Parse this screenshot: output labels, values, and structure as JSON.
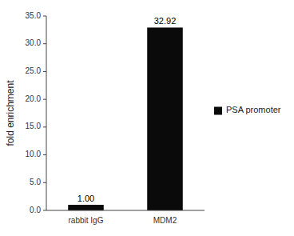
{
  "chart_data": {
    "type": "bar",
    "categories": [
      "rabbit IgG",
      "MDM2"
    ],
    "series": [
      {
        "name": "PSA promoter",
        "color": "#0a0a0a",
        "values": [
          1.0,
          32.92
        ],
        "value_labels": [
          "1.00",
          "32.92"
        ]
      }
    ],
    "ylabel": "fold enrichment",
    "ylim": [
      0,
      35
    ],
    "yticks": [
      {
        "value": 0,
        "label": "0.0"
      },
      {
        "value": 5,
        "label": "5.0"
      },
      {
        "value": 10,
        "label": "10.0"
      },
      {
        "value": 15,
        "label": "15.0"
      },
      {
        "value": 20,
        "label": "20.0"
      },
      {
        "value": 25,
        "label": "25.0"
      },
      {
        "value": 30,
        "label": "30.0"
      },
      {
        "value": 35,
        "label": "35.0"
      }
    ],
    "data_labels": true,
    "legend": "right",
    "grid": false
  }
}
